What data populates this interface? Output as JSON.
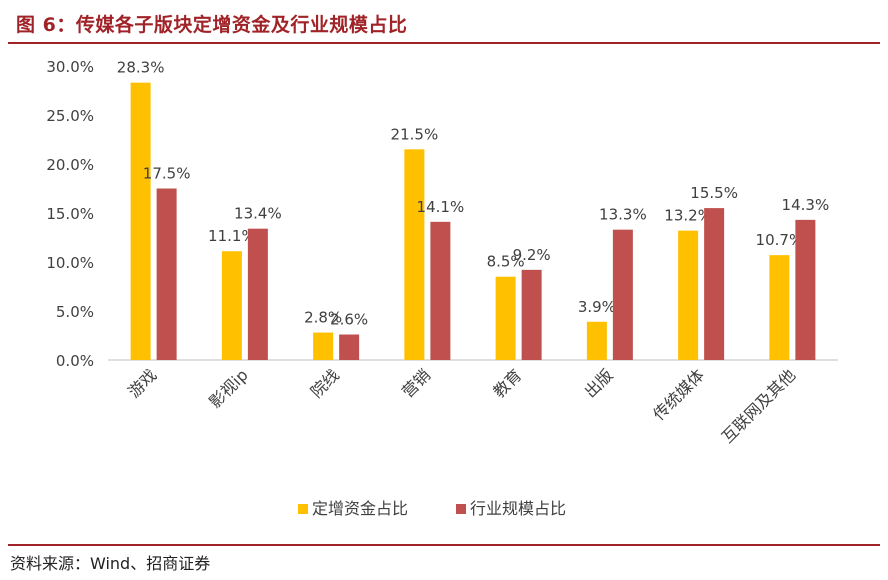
{
  "title": "图 6：传媒各子版块定增资金及行业规模占比",
  "source": "资料来源：Wind、招商证券",
  "colors": {
    "title_red": "#a02328",
    "series1": "#ffc000",
    "series2": "#c0504d",
    "axis": "#bfbfbf",
    "text": "#404040"
  },
  "chart_data": {
    "type": "bar",
    "title": "",
    "xlabel": "",
    "ylabel": "",
    "ylim": [
      0,
      30
    ],
    "yticks": [
      0,
      5,
      10,
      15,
      20,
      25,
      30
    ],
    "ytick_labels": [
      "0.0%",
      "5.0%",
      "10.0%",
      "15.0%",
      "20.0%",
      "25.0%",
      "30.0%"
    ],
    "categories": [
      "游戏",
      "影视ip",
      "院线",
      "营销",
      "教育",
      "出版",
      "传统媒体",
      "互联网及其他"
    ],
    "series": [
      {
        "name": "定增资金占比",
        "values": [
          28.3,
          11.1,
          2.8,
          21.5,
          8.5,
          3.9,
          13.2,
          10.7
        ],
        "labels": [
          "28.3%",
          "11.1%",
          "2.8%",
          "21.5%",
          "8.5%",
          "3.9%",
          "13.2%",
          "10.7%"
        ]
      },
      {
        "name": "行业规模占比",
        "values": [
          17.5,
          13.4,
          2.6,
          14.1,
          9.2,
          13.3,
          15.5,
          14.3
        ],
        "labels": [
          "17.5%",
          "13.4%",
          "2.6%",
          "14.1%",
          "9.2%",
          "13.3%",
          "15.5%",
          "14.3%"
        ]
      }
    ],
    "legend": "bottom",
    "grid": false
  }
}
